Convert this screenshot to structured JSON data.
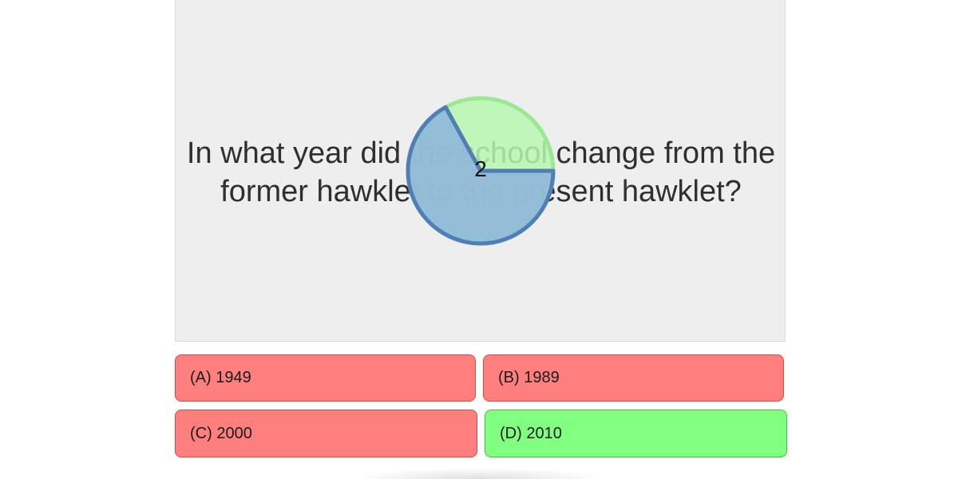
{
  "question": {
    "text": "In what year did the school change from the former hawklet to the present hawklet?"
  },
  "timer": {
    "count": "2",
    "remaining_fraction": 0.67,
    "colors": {
      "remaining_fill": "#8fb7dc",
      "remaining_stroke": "#4f7fb5",
      "elapsed_fill": "#b7f7b0",
      "elapsed_stroke": "#9ae992"
    }
  },
  "answers": [
    {
      "label": "(A) 1949",
      "state": "wrong"
    },
    {
      "label": "(B) 1989",
      "state": "wrong"
    },
    {
      "label": "(C) 2000",
      "state": "wrong"
    },
    {
      "label": "(D) 2010",
      "state": "correct"
    }
  ],
  "colors": {
    "wrong": "#ff7f7f",
    "correct": "#80ff80",
    "panel": "#eeeeee"
  }
}
